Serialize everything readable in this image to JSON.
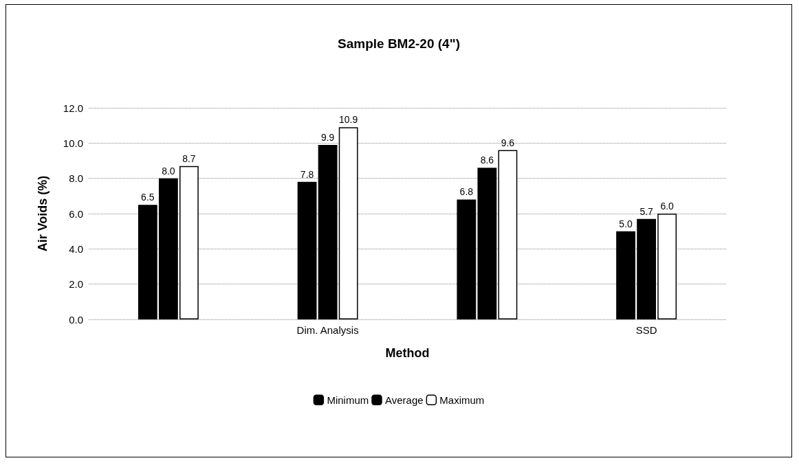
{
  "chart_data": {
    "type": "bar",
    "title": "Sample BM2-20 (4\")",
    "xlabel": "Method",
    "ylabel": "Air Voids (%)",
    "categories": [
      null,
      "Dim. Analysis",
      null,
      "SSD"
    ],
    "series": [
      {
        "name": "Minimum",
        "color": "#000000",
        "values": [
          6.5,
          7.8,
          6.8,
          5.0
        ],
        "value_labels": [
          "6.5",
          "7.8",
          "6.8",
          "5.0"
        ]
      },
      {
        "name": "Average",
        "color": "#000000",
        "values": [
          8.0,
          9.9,
          8.6,
          5.7
        ],
        "value_labels": [
          "8.0",
          "9.9",
          "8.6",
          "5.7"
        ]
      },
      {
        "name": "Maximum",
        "color": "#ffffff",
        "values": [
          8.7,
          10.9,
          9.6,
          6.0
        ],
        "value_labels": [
          "8.7",
          "10.9",
          "9.6",
          "6.0"
        ]
      }
    ],
    "ylim": [
      0,
      12
    ],
    "yticks": [
      {
        "value": 0,
        "label": "0.0"
      },
      {
        "value": 2,
        "label": "2.0"
      },
      {
        "value": 4,
        "label": "4.0"
      },
      {
        "value": 6,
        "label": "6.0"
      },
      {
        "value": 8,
        "label": "8.0"
      },
      {
        "value": 10,
        "label": "10.0"
      },
      {
        "value": 12,
        "label": "12.0"
      }
    ],
    "grid": "y",
    "legend": "bottom"
  }
}
